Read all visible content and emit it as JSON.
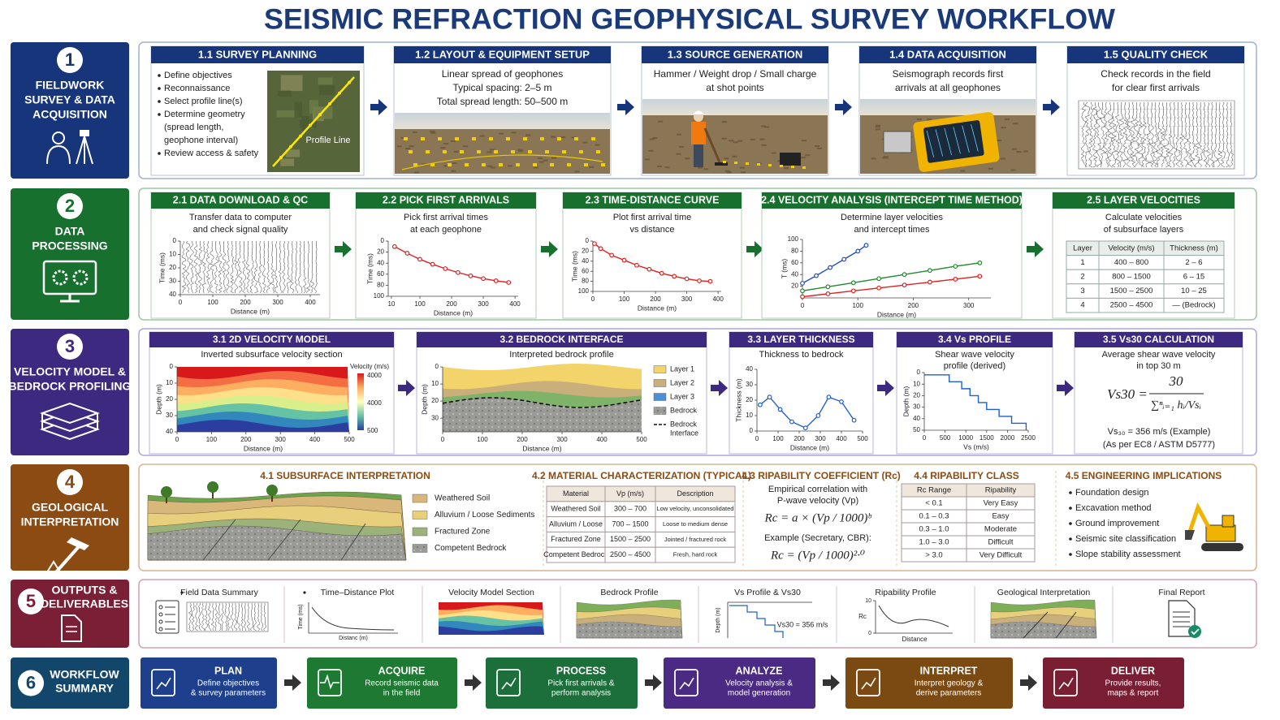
{
  "title": "SEISMIC REFRACTION GEOPHYSICAL SURVEY WORKFLOW",
  "stages": [
    {
      "number": 1,
      "label": [
        "FIELDWORK",
        "SURVEY & DATA",
        "ACQUISITION"
      ]
    },
    {
      "number": 2,
      "label": [
        "DATA",
        "PROCESSING"
      ]
    },
    {
      "number": 3,
      "label": [
        "VELOCITY MODEL &",
        "BEDROCK PROFILING"
      ]
    },
    {
      "number": 4,
      "label": [
        "GEOLOGICAL",
        "INTERPRETATION"
      ]
    },
    {
      "number": 5,
      "label": [
        "OUTPUTS &",
        "DELIVERABLES"
      ]
    },
    {
      "number": 6,
      "label": [
        "WORKFLOW",
        "SUMMARY"
      ]
    }
  ],
  "fieldwork": [
    {
      "title": "1.1 SURVEY PLANNING",
      "bullets": [
        [
          "Define objectives"
        ],
        [
          "Reconnaissance"
        ],
        [
          "Select profile line(s)"
        ],
        [
          "Determine geometry",
          "(spread length,",
          "geophone interval)"
        ],
        [
          "Review access & safety"
        ]
      ],
      "image_label": "Profile Line"
    },
    {
      "title": "1.2 LAYOUT & EQUIPMENT SETUP",
      "text": [
        "Linear spread of geophones",
        "Typical spacing: 2–5 m",
        "Total spread length: 50–500 m"
      ]
    },
    {
      "title": "1.3 SOURCE GENERATION",
      "text": [
        "Hammer / Weight drop / Small charge",
        "at shot points"
      ]
    },
    {
      "title": "1.4 DATA ACQUISITION",
      "text": [
        "Seismograph records first",
        "arrivals at all geophones"
      ]
    },
    {
      "title": "1.5 QUALITY CHECK",
      "text": [
        "Check records in the field",
        "for clear first arrivals"
      ]
    }
  ],
  "processing": [
    {
      "title": "2.1 DATA DOWNLOAD & QC",
      "text": [
        "Transfer data to computer",
        "and check signal quality"
      ],
      "plot": {
        "x_label": "Distance (m)",
        "y_label": "Time (ms)",
        "xlim": [
          0,
          430
        ],
        "ylim": [
          40,
          0
        ],
        "xticks": [
          0,
          100,
          200,
          300,
          400
        ],
        "yticks": [
          0,
          10,
          20,
          30,
          40
        ]
      }
    },
    {
      "title": "2.2 PICK FIRST ARRIVALS",
      "text": [
        "Pick first arrival times",
        "at each geophone"
      ],
      "plot": {
        "x_label": "Distance (m)",
        "y_label": "Time (ms)",
        "xlim": [
          0,
          410
        ],
        "ylim": [
          100,
          0
        ],
        "xticks": [
          10,
          100,
          200,
          300,
          400
        ],
        "yticks": [
          0,
          20,
          40,
          60,
          80,
          100
        ],
        "series": [
          {
            "color": "#e02020",
            "x": [
              20,
              60,
              100,
              140,
              180,
              220,
              260,
              300,
              340,
              380
            ],
            "y": [
              10,
              22,
              33,
              42,
              50,
              57,
              63,
              68,
              72,
              75
            ]
          }
        ]
      }
    },
    {
      "title": "2.3 TIME-DISTANCE CURVE",
      "text": [
        "Plot first arrival time",
        "vs distance"
      ],
      "plot": {
        "x_label": "Distance (m)",
        "y_label": "Time (ms)",
        "xlim": [
          0,
          410
        ],
        "ylim": [
          100,
          0
        ],
        "xticks": [
          0,
          100,
          200,
          300,
          400
        ],
        "yticks": [
          0,
          20,
          40,
          60,
          80,
          100
        ],
        "series": [
          {
            "color": "#e02020",
            "x": [
              5,
              25,
              60,
              100,
              140,
              180,
              220,
              260,
              300,
              340,
              375
            ],
            "y": [
              5,
              15,
              28,
              38,
              48,
              56,
              64,
              70,
              75,
              79,
              80
            ]
          }
        ]
      }
    },
    {
      "title": "2.4 VELOCITY ANALYSIS (INTERCEPT TIME METHOD)",
      "text": [
        "Determine layer velocities",
        "and intercept times"
      ],
      "plot": {
        "x_label": "Distance (m)",
        "y_label": "T (ms)",
        "xlim": [
          0,
          340
        ],
        "ylim": [
          0,
          100
        ],
        "xticks": [
          0,
          100,
          200,
          300
        ],
        "yticks": [
          20,
          40,
          60,
          80,
          100
        ],
        "series": [
          {
            "color": "#1f4fc0",
            "x": [
              0,
              25,
              50,
              75,
              100,
              115
            ],
            "y": [
              25,
              38,
              52,
              66,
              80,
              90
            ]
          },
          {
            "color": "#1f8a2c",
            "x": [
              0,
              46,
              92,
              138,
              184,
              230,
              276,
              320
            ],
            "y": [
              12,
              19,
              26,
              33,
              40,
              47,
              54,
              60
            ]
          },
          {
            "color": "#e02020",
            "x": [
              0,
              46,
              92,
              138,
              184,
              230,
              276,
              320
            ],
            "y": [
              2,
              7,
              12,
              17,
              22,
              27,
              32,
              37
            ]
          }
        ]
      }
    },
    {
      "title": "2.5 LAYER VELOCITIES",
      "text": [
        "Calculate velocities",
        "of subsurface layers"
      ],
      "table": {
        "header": [
          "Layer",
          "Velocity (m/s)",
          "Thickness (m)"
        ],
        "rows": [
          [
            "1",
            "400 – 800",
            "2 – 6"
          ],
          [
            "2",
            "800 – 1500",
            "6 – 15"
          ],
          [
            "3",
            "1500 – 2500",
            "10 – 25"
          ],
          [
            "4",
            "2500 – 4500",
            "— (Bedrock)"
          ]
        ]
      }
    }
  ],
  "velocity": [
    {
      "title": "3.1 2D VELOCITY MODEL",
      "text": [
        "Inverted subsurface velocity section"
      ],
      "plot": {
        "x_label": "Distance (m)",
        "y_label": "Depth (m)",
        "xlim": [
          0,
          500
        ],
        "ylim": [
          40,
          0
        ],
        "xticks": [
          0,
          100,
          200,
          300,
          400,
          500
        ],
        "yticks": [
          0,
          10,
          20,
          30,
          40
        ]
      },
      "colorbar": {
        "title": "Velocity (m/s)",
        "labels": [
          "4000",
          "4000",
          "500"
        ]
      }
    },
    {
      "title": "3.2 BEDROCK INTERFACE",
      "text": [
        "Interpreted bedrock profile"
      ],
      "plot": {
        "x_label": "Distance (m)",
        "y_label": "Depth (m)",
        "xlim": [
          0,
          500
        ],
        "ylim": [
          38,
          0
        ],
        "xticks": [
          0,
          100,
          200,
          300,
          400,
          500
        ],
        "yticks": [
          0,
          10,
          20,
          30
        ]
      },
      "legend": [
        [
          "Layer 1"
        ],
        [
          "Layer 2"
        ],
        [
          "Layer 3"
        ],
        [
          "Bedrock"
        ],
        [
          "Bedrock",
          "Interface"
        ]
      ]
    },
    {
      "title": "3.3 LAYER THICKNESS",
      "text": [
        "Thickness to bedrock"
      ],
      "plot": {
        "x_label": "Distance (m)",
        "y_label": "Thickness (m)",
        "xlim": [
          0,
          500
        ],
        "ylim": [
          0,
          40
        ],
        "xticks": [
          0,
          100,
          200,
          300,
          400,
          500
        ],
        "yticks": [
          0,
          10,
          20,
          30,
          40
        ],
        "series": [
          {
            "color": "#1f5fd0",
            "x": [
              15,
              60,
              110,
              165,
              230,
              290,
              340,
              400,
              460
            ],
            "y": [
              17,
              22,
              14,
              6,
              2,
              10,
              22,
              19,
              7
            ]
          }
        ]
      }
    },
    {
      "title": "3.4 Vs PROFILE",
      "text": [
        "Shear wave velocity",
        "profile (derived)"
      ],
      "plot": {
        "x_label": "Vs (m/s)",
        "y_label": "Depth (m)",
        "xlim": [
          0,
          2500
        ],
        "ylim": [
          50,
          0
        ],
        "xticks": [
          0,
          500,
          1000,
          1500,
          2000,
          2500
        ],
        "yticks": [
          0,
          10,
          20,
          30,
          40,
          50
        ],
        "series": [
          {
            "color": "#1f5fd0",
            "step": true,
            "x": [
              0,
              600,
              600,
              900,
              900,
              1100,
              1100,
              1300,
              1300,
              1500,
              1500,
              1800,
              1800,
              2100,
              2100,
              2450,
              2450
            ],
            "y": [
              2,
              2,
              8,
              8,
              14,
              14,
              20,
              20,
              26,
              26,
              32,
              32,
              38,
              38,
              44,
              44,
              50
            ]
          }
        ]
      }
    },
    {
      "title": "3.5 Vs30 CALCULATION",
      "text": [
        "Average shear wave velocity",
        "in top 30 m"
      ],
      "formula": {
        "lhs": "Vs30 =",
        "numerator": "30",
        "denominator": "∑ⁿᵢ₌₁ hᵢ/Vsᵢ"
      },
      "result": [
        "Vs₃₀ = 356 m/s (Example)",
        "(As per EC8 / ASTM D5777)"
      ]
    }
  ],
  "interpretation": {
    "subsurface": {
      "title": "4.1 SUBSURFACE INTERPRETATION",
      "legend": [
        "Weathered Soil",
        "Alluvium / Loose Sediments",
        "Fractured Zone",
        "Competent Bedrock"
      ]
    },
    "material": {
      "title": "4.2 MATERIAL CHARACTERIZATION (TYPICAL)",
      "header": [
        "Material",
        "Vp (m/s)",
        "Description"
      ],
      "rows": [
        [
          "Weathered Soil",
          "300 – 700",
          "Low velocity, unconsolidated"
        ],
        [
          "Alluvium / Loose",
          "700 – 1500",
          "Loose to medium dense"
        ],
        [
          "Fractured Zone",
          "1500 – 2500",
          "Jointed / fractured rock"
        ],
        [
          "Competent Bedrock",
          "2500 – 4500",
          "Fresh, hard rock"
        ]
      ]
    },
    "ripability_coefficient": {
      "title": "4.3 RIPABILITY COEFFICIENT (Rc)",
      "text": [
        "Empirical correlation with",
        "P-wave velocity (Vp)"
      ],
      "formula": "Rc = a × (Vp / 1000)ᵇ",
      "example": "Example (Secretary, CBR):",
      "formula_example": "Rc = (Vp / 1000)²·⁰"
    },
    "ripability_class": {
      "title": "4.4 RIPABILITY CLASS",
      "header": [
        "Rc Range",
        "Ripability"
      ],
      "rows": [
        [
          "< 0.1",
          "Very Easy"
        ],
        [
          "0.1 – 0.3",
          "Easy"
        ],
        [
          "0.3 – 1.0",
          "Moderate"
        ],
        [
          "1.0 – 3.0",
          "Difficult"
        ],
        [
          "> 3.0",
          "Very Difficult"
        ]
      ]
    },
    "implications": {
      "title": "4.5 ENGINEERING IMPLICATIONS",
      "bullets": [
        "Foundation design",
        "Excavation method",
        "Ground improvement",
        "Seismic site classification",
        "Slope stability assessment"
      ]
    }
  },
  "outputs": [
    {
      "label": "Field Data Summary"
    },
    {
      "label": "Time–Distance Plot",
      "x_label": "Distanc (m)",
      "y_label": "Time (ms)"
    },
    {
      "label": "Velocity Model Section"
    },
    {
      "label": "Bedrock Profile"
    },
    {
      "label": "Vs Profile & Vs30",
      "y_label": "Depth (m)",
      "note": "Vs30 = 356 m/s"
    },
    {
      "label": "Ripability Profile",
      "y_label": "Rc",
      "yticks": [
        0,
        10
      ],
      "x_label": "Distance"
    },
    {
      "label": "Geological Interpretation"
    },
    {
      "label": "Final Report"
    }
  ],
  "summary": [
    {
      "title": "PLAN",
      "text": [
        "Define objectives",
        "& survey parameters"
      ]
    },
    {
      "title": "ACQUIRE",
      "text": [
        "Record seismic data",
        "in the field"
      ]
    },
    {
      "title": "PROCESS",
      "text": [
        "Pick first arrivals &",
        "perform analysis"
      ]
    },
    {
      "title": "ANALYZE",
      "text": [
        "Velocity analysis &",
        "model generation"
      ]
    },
    {
      "title": "INTERPRET",
      "text": [
        "Interpret geology &",
        "derive parameters"
      ]
    },
    {
      "title": "DELIVER",
      "text": [
        "Provide results,",
        "maps & report"
      ]
    }
  ]
}
